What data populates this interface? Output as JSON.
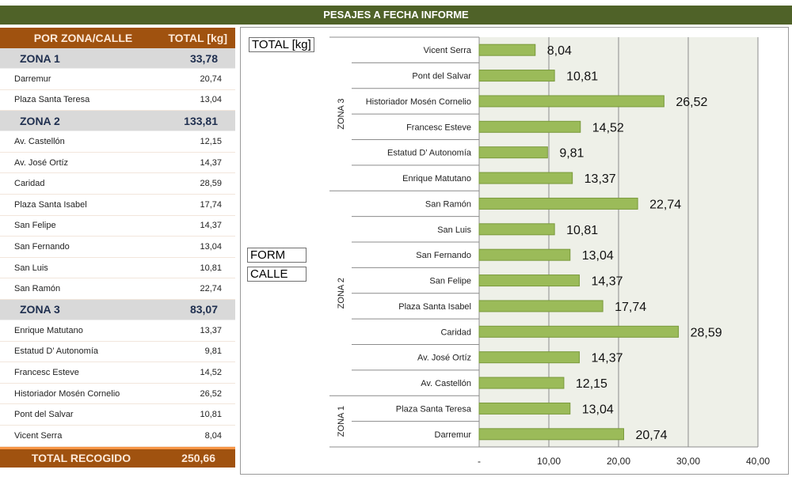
{
  "banner": "PESAJES A FECHA INFORME",
  "table": {
    "header": {
      "name": "POR ZONA/CALLE",
      "total": "TOTAL [kg]"
    },
    "zones": [
      {
        "name": "ZONA 1",
        "total": "33,78",
        "streets": [
          {
            "name": "Darremur",
            "value": "20,74"
          },
          {
            "name": "Plaza Santa Teresa",
            "value": "13,04"
          }
        ]
      },
      {
        "name": "ZONA 2",
        "total": "133,81",
        "streets": [
          {
            "name": "Av. Castellón",
            "value": "12,15"
          },
          {
            "name": "Av. José Ortíz",
            "value": "14,37"
          },
          {
            "name": "Caridad",
            "value": "28,59"
          },
          {
            "name": "Plaza Santa Isabel",
            "value": "17,74"
          },
          {
            "name": "San Felipe",
            "value": "14,37"
          },
          {
            "name": "San Fernando",
            "value": "13,04"
          },
          {
            "name": "San Luis",
            "value": "10,81"
          },
          {
            "name": "San Ramón",
            "value": "22,74"
          }
        ]
      },
      {
        "name": "ZONA 3",
        "total": "83,07",
        "streets": [
          {
            "name": "Enrique Matutano",
            "value": "13,37"
          },
          {
            "name": "Estatud D’ Autonomía",
            "value": "9,81"
          },
          {
            "name": "Francesc Esteve",
            "value": "14,52"
          },
          {
            "name": "Historiador Mosén Cornelio",
            "value": "26,52"
          },
          {
            "name": "Pont del Salvar",
            "value": "10,81"
          },
          {
            "name": "Vicent Serra",
            "value": "8,04"
          }
        ]
      }
    ],
    "total": {
      "label": "TOTAL RECOGIDO",
      "value": "250,66"
    }
  },
  "chart_tags": {
    "values_field": "TOTAL [kg]",
    "row_field_1": "FORM",
    "row_field_2": "CALLE"
  },
  "chart_data": {
    "type": "bar",
    "orientation": "horizontal",
    "title": "",
    "xlabel": "",
    "ylabel": "",
    "xlim": [
      0,
      40
    ],
    "x_ticks": [
      "-",
      "10,00",
      "20,00",
      "30,00",
      "40,00"
    ],
    "grid": true,
    "bar_color": "#9bbb59",
    "plot_bg": "#eef0e8",
    "groups": [
      {
        "name": "ZONA 3",
        "categories": [
          "Vicent Serra",
          "Pont del Salvar",
          "Historiador Mosén Cornelio",
          "Francesc Esteve",
          "Estatud D’ Autonomía",
          "Enrique Matutano"
        ],
        "values": [
          8.04,
          10.81,
          26.52,
          14.52,
          9.81,
          13.37
        ],
        "labels": [
          "8,04",
          "10,81",
          "26,52",
          "14,52",
          "9,81",
          "13,37"
        ]
      },
      {
        "name": "ZONA 2",
        "categories": [
          "San Ramón",
          "San Luis",
          "San Fernando",
          "San Felipe",
          "Plaza Santa Isabel",
          "Caridad",
          "Av. José Ortíz",
          "Av. Castellón"
        ],
        "values": [
          22.74,
          10.81,
          13.04,
          14.37,
          17.74,
          28.59,
          14.37,
          12.15
        ],
        "labels": [
          "22,74",
          "10,81",
          "13,04",
          "14,37",
          "17,74",
          "28,59",
          "14,37",
          "12,15"
        ]
      },
      {
        "name": "ZONA 1",
        "categories": [
          "Plaza Santa Teresa",
          "Darremur"
        ],
        "values": [
          13.04,
          20.74
        ],
        "labels": [
          "13,04",
          "20,74"
        ]
      }
    ]
  }
}
